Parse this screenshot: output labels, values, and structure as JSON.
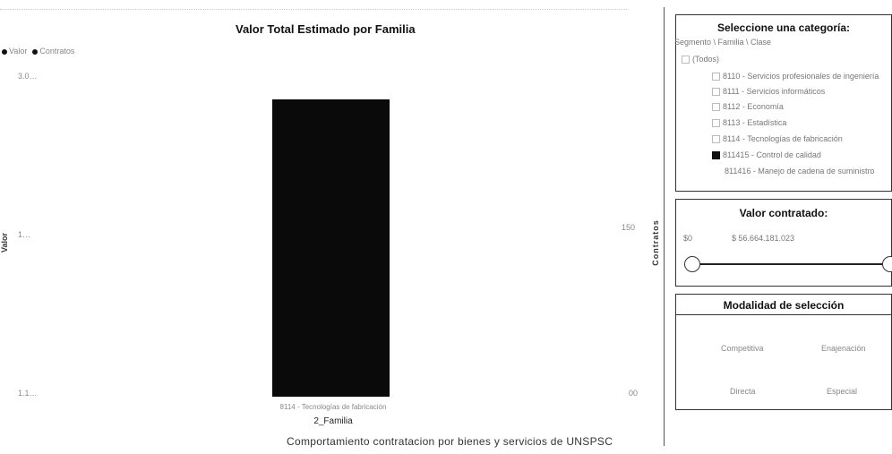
{
  "chart": {
    "title": "Valor Total Estimado por Familia",
    "legend": [
      {
        "label": "Valor"
      },
      {
        "label": "Contratos"
      }
    ],
    "y_left_label": "Valor",
    "y_right_label": "Contratos",
    "left_ticks": [
      "3.0…",
      "1…",
      "1.1…"
    ],
    "right_ticks": [
      "150",
      "00"
    ],
    "x_label": "2_Familia",
    "footer": "Comportamiento contratacion por bienes y servicios de UNSPSC"
  },
  "chart_data": {
    "type": "bar",
    "categories": [
      "8114 - Tecnologías de fabricación"
    ],
    "series": [
      {
        "name": "Valor",
        "values": [
          1
        ]
      }
    ],
    "title": "Valor Total Estimado por Familia",
    "xlabel": "2_Familia",
    "ylabel": "Valor",
    "y2label": "Contratos",
    "ylim": [
      0,
      1.1
    ],
    "colors": [
      "#0a0a0a"
    ]
  },
  "filters": {
    "category": {
      "title": "Seleccione una categoría:",
      "breadcrumb": "Segmento \\ Familia \\ Clase",
      "root": "(Todos)",
      "items": [
        {
          "label": "8110 - Servicios profesionales de ingeniería",
          "selected": false
        },
        {
          "label": "8111 - Servicios informáticos",
          "selected": false
        },
        {
          "label": "8112 - Economía",
          "selected": false
        },
        {
          "label": "8113 - Estadística",
          "selected": false
        },
        {
          "label": "8114 - Tecnologías de fabricación",
          "selected": false
        },
        {
          "label": "811415 - Control de calidad",
          "selected": true
        },
        {
          "label": "811416 - Manejo de cadena de suministro",
          "selected": false
        }
      ]
    },
    "valor": {
      "title": "Valor contratado:",
      "min_label": "$0",
      "max_label": "$ 56.664.181.023"
    },
    "modalidad": {
      "title": "Modalidad de selección",
      "options": [
        "Competitiva",
        "Enajenación",
        "Directa",
        "Especial"
      ]
    }
  }
}
